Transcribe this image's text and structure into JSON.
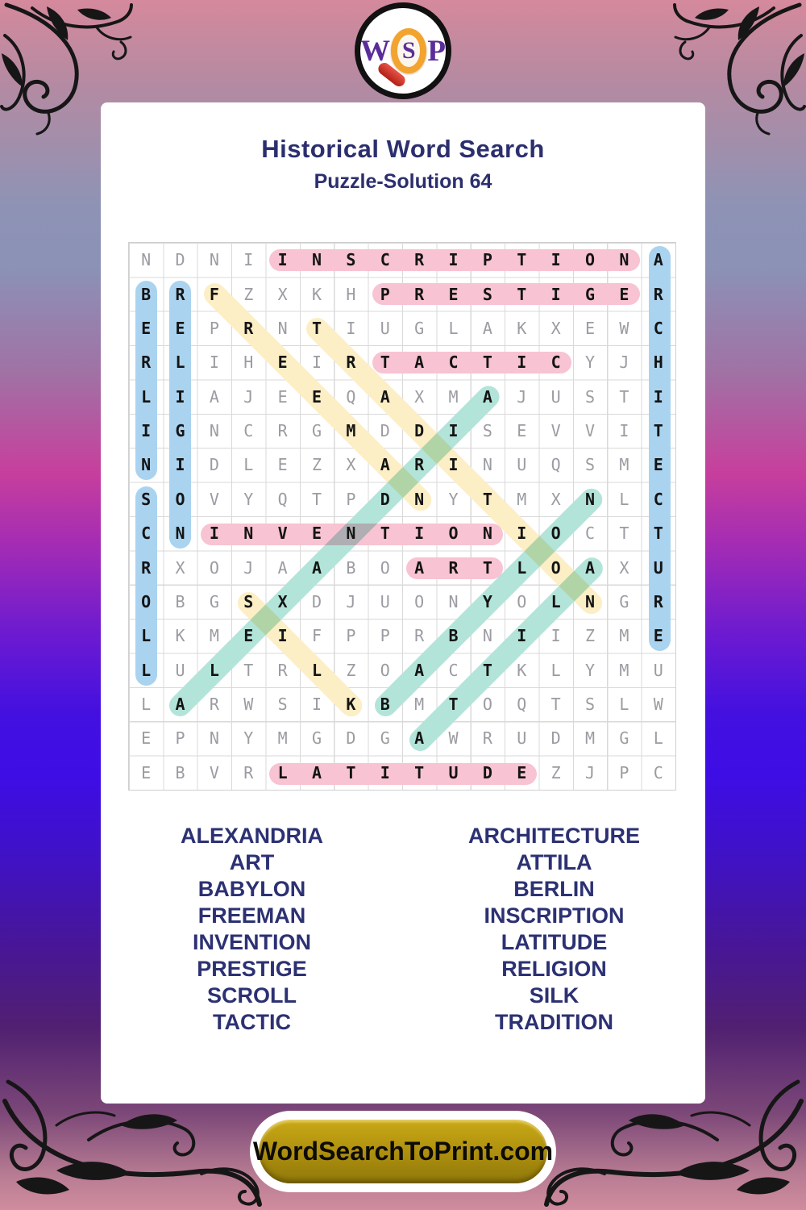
{
  "logo": {
    "w": "W",
    "s": "S",
    "p": "P"
  },
  "header": {
    "title": "Historical Word Search",
    "subtitle": "Puzzle-Solution 64"
  },
  "grid": {
    "size": 16,
    "rows": [
      "NDNIINSCRIPTIONA",
      "BRFZXKHPRESTIGER",
      "EEPRNTIUGLAKXEWC",
      "RLIHEIRTACTICYJH",
      "LIAJEEQAXMAJUSTI",
      "IGNCRGMDDISEVVIT",
      "NIDLEZXARINUQSME",
      "SOVYQTPDNYTMXNLC",
      "CNINVENTIONIOCTT",
      "RXOJAABOARTLOAXU",
      "OBGSXDJUONYOLNGR",
      "LKMEIFPPRBNIIZME",
      "LULTRLZOACTKLYMU",
      "LARWSIKBMTOQTSLW",
      "EPNYMGDGAWRUDMGL",
      "EBVRLATITUDEZJPC"
    ],
    "solutions": [
      {
        "word": "INSCRIPTION",
        "row": 1,
        "col": 5,
        "dir": "h",
        "color": "pink"
      },
      {
        "word": "PRESTIGE",
        "row": 2,
        "col": 8,
        "dir": "h",
        "color": "pink"
      },
      {
        "word": "TACTIC",
        "row": 4,
        "col": 8,
        "dir": "h",
        "color": "pink"
      },
      {
        "word": "INVENTION",
        "row": 9,
        "col": 3,
        "dir": "h",
        "color": "pink"
      },
      {
        "word": "ART",
        "row": 10,
        "col": 9,
        "dir": "h",
        "color": "pink"
      },
      {
        "word": "LATITUDE",
        "row": 16,
        "col": 5,
        "dir": "h",
        "color": "pink"
      },
      {
        "word": "BERLIN",
        "row": 2,
        "col": 1,
        "dir": "v",
        "color": "blue"
      },
      {
        "word": "RELIGION",
        "row": 2,
        "col": 2,
        "dir": "v",
        "color": "blue"
      },
      {
        "word": "SCROLL",
        "row": 8,
        "col": 1,
        "dir": "v",
        "color": "blue"
      },
      {
        "word": "ARCHITECTURE",
        "row": 1,
        "col": 16,
        "dir": "v",
        "color": "blue"
      },
      {
        "word": "FREEMAN",
        "row": 2,
        "col": 3,
        "dir": "dr",
        "color": "yellow"
      },
      {
        "word": "TRADITION",
        "row": 3,
        "col": 6,
        "dir": "dr",
        "color": "yellow"
      },
      {
        "word": "SILK",
        "row": 11,
        "col": 4,
        "dir": "dr",
        "color": "yellow"
      },
      {
        "word": "ALEXANDRIA",
        "row": 14,
        "col": 2,
        "dir": "ur",
        "color": "teal"
      },
      {
        "word": "BABYLON",
        "row": 14,
        "col": 8,
        "dir": "ur",
        "color": "teal"
      },
      {
        "word": "ATTILA",
        "row": 15,
        "col": 9,
        "dir": "ur",
        "color": "teal"
      }
    ],
    "highlight_colors": {
      "pink": "#f8c3d2",
      "blue": "#aad3f0",
      "yellow": "#fceec5",
      "teal": "#b3e4d9"
    }
  },
  "word_list": {
    "left": [
      "ALEXANDRIA",
      "ART",
      "BABYLON",
      "FREEMAN",
      "INVENTION",
      "PRESTIGE",
      "SCROLL",
      "TACTIC"
    ],
    "right": [
      "ARCHITECTURE",
      "ATTILA",
      "BERLIN",
      "INSCRIPTION",
      "LATITUDE",
      "RELIGION",
      "SILK",
      "TRADITION"
    ]
  },
  "footer": {
    "site": "WordSearchToPrint.com"
  }
}
